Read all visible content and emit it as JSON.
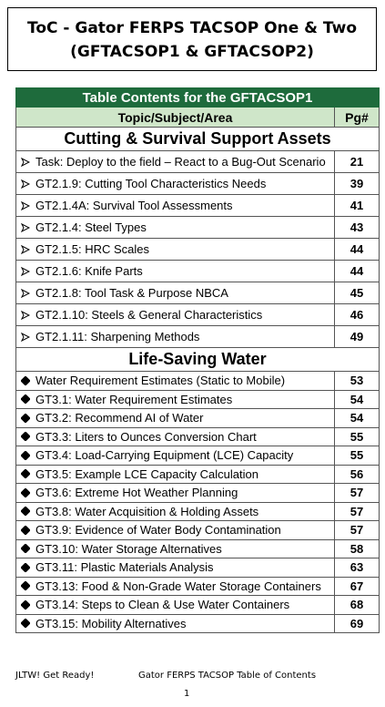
{
  "header": {
    "title_lines": [
      "ToC - Gator FERPS TACSOP One & Two",
      "(GFTACSOP1 & GFTACSOP2)"
    ]
  },
  "table": {
    "caption": "Table Contents for the GFTACSOP1",
    "columns": [
      "Topic/Subject/Area",
      "Pg#"
    ],
    "sections": [
      {
        "title": "Cutting & Survival Support Assets",
        "rows": [
          [
            "Task: Deploy to the field – React to a Bug-Out Scenario",
            21
          ],
          [
            "GT2.1.9: Cutting Tool Characteristics Needs",
            39
          ],
          [
            "GT2.1.4A: Survival Tool Assessments",
            41
          ],
          [
            "GT2.1.4: Steel Types",
            43
          ],
          [
            "GT2.1.5: HRC Scales",
            44
          ],
          [
            "GT2.1.6: Knife Parts",
            44
          ],
          [
            "GT2.1.8: Tool Task & Purpose NBCA",
            45
          ],
          [
            "GT2.1.10: Steels & General Characteristics",
            46
          ],
          [
            "GT2.1.11: Sharpening Methods",
            49
          ]
        ]
      },
      {
        "title": "Life-Saving Water",
        "rows": [
          [
            "Water Requirement Estimates (Static to Mobile)",
            53
          ],
          [
            "GT3.1: Water Requirement Estimates",
            54
          ],
          [
            "GT3.2: Recommend AI of Water",
            54
          ],
          [
            "GT3.3: Liters to Ounces Conversion Chart",
            55
          ],
          [
            "GT3.4: Load-Carrying Equipment (LCE) Capacity",
            55
          ],
          [
            "GT3.5: Example LCE Capacity Calculation",
            56
          ],
          [
            "GT3.6: Extreme Hot Weather Planning",
            57
          ],
          [
            "GT3.8: Water Acquisition & Holding Assets",
            57
          ],
          [
            "GT3.9: Evidence of Water Body Contamination",
            57
          ],
          [
            "GT3.10: Water Storage Alternatives",
            58
          ],
          [
            "GT3.11: Plastic Materials Analysis",
            63
          ],
          [
            "GT3.13: Food & Non-Grade Water Storage Containers",
            67
          ],
          [
            "GT3.14: Steps to Clean & Use Water Containers",
            68
          ],
          [
            "GT3.15: Mobility Alternatives",
            69
          ]
        ]
      }
    ]
  },
  "footer": {
    "left": "JLTW! Get Ready!",
    "center": "Gator FERPS TACSOP Table of Contents",
    "page": "1"
  }
}
